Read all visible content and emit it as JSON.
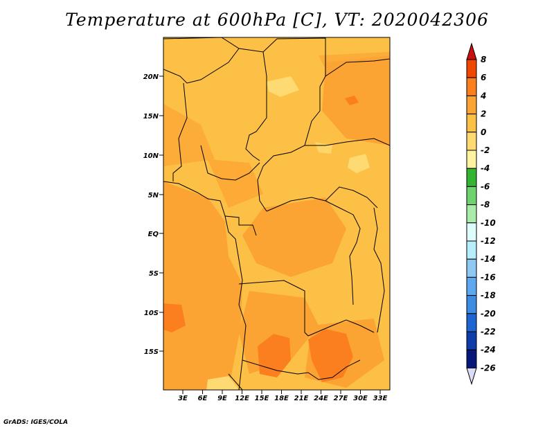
{
  "title": "Temperature at 600hPa [C], VT: 2020042306",
  "credit": "GrADS: IGES/COLA",
  "map": {
    "lat_labels": [
      "20N",
      "15N",
      "10N",
      "5N",
      "EQ",
      "5S",
      "10S",
      "15S"
    ],
    "lon_labels": [
      "3E",
      "6E",
      "9E",
      "12E",
      "15E",
      "18E",
      "21E",
      "24E",
      "27E",
      "30E",
      "33E"
    ]
  },
  "colorbar": {
    "levels": [
      "8",
      "6",
      "4",
      "2",
      "0",
      "-2",
      "-4",
      "-6",
      "-8",
      "-10",
      "-12",
      "-14",
      "-16",
      "-18",
      "-20",
      "-22",
      "-24",
      "-26"
    ],
    "colors": [
      "#e31b00",
      "#f04800",
      "#fb7f1e",
      "#fca433",
      "#fcc046",
      "#feda72",
      "#fef3a0",
      "#33b433",
      "#6fd26f",
      "#a9eca9",
      "#dffcfc",
      "#b6eefc",
      "#8ec8f3",
      "#5ea8ef",
      "#3c8ce3",
      "#1e64d2",
      "#0e3ca8",
      "#06167a"
    ],
    "top_arrow_color": "#cc1010",
    "bottom_arrow_color": "#dcdcf8"
  }
}
